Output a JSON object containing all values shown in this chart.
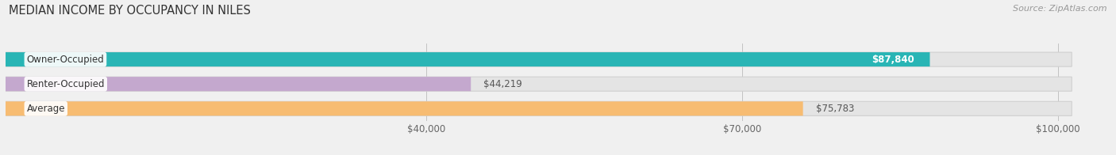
{
  "title": "MEDIAN INCOME BY OCCUPANCY IN NILES",
  "source": "Source: ZipAtlas.com",
  "categories": [
    "Owner-Occupied",
    "Renter-Occupied",
    "Average"
  ],
  "values": [
    87840,
    44219,
    75783
  ],
  "bar_colors": [
    "#29b5b5",
    "#c4a8ce",
    "#f7bc72"
  ],
  "value_labels": [
    "$87,840",
    "$44,219",
    "$75,783"
  ],
  "value_label_colors": [
    "white",
    "#555555",
    "#555555"
  ],
  "xlim_max": 105000,
  "xticks": [
    40000,
    70000,
    100000
  ],
  "xtick_labels": [
    "$40,000",
    "$70,000",
    "$100,000"
  ],
  "background_color": "#f0f0f0",
  "bar_bg_color": "#e4e4e4",
  "bar_bg_edge_color": "#d0d0d0",
  "title_fontsize": 10.5,
  "source_fontsize": 8,
  "label_fontsize": 8.5,
  "value_fontsize": 8.5
}
